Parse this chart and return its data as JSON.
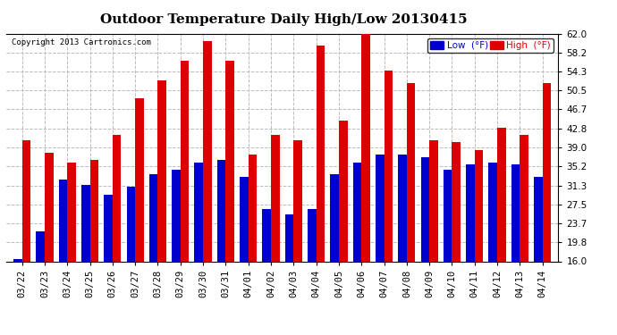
{
  "title": "Outdoor Temperature Daily High/Low 20130415",
  "copyright": "Copyright 2013 Cartronics.com",
  "dates": [
    "03/22",
    "03/23",
    "03/24",
    "03/25",
    "03/26",
    "03/27",
    "03/28",
    "03/29",
    "03/30",
    "03/31",
    "04/01",
    "04/02",
    "04/03",
    "04/04",
    "04/05",
    "04/06",
    "04/07",
    "04/08",
    "04/09",
    "04/10",
    "04/11",
    "04/12",
    "04/13",
    "04/14"
  ],
  "highs": [
    40.5,
    38.0,
    36.0,
    36.5,
    41.5,
    49.0,
    52.5,
    56.5,
    60.5,
    56.5,
    37.5,
    41.5,
    40.5,
    59.5,
    44.5,
    62.0,
    54.5,
    52.0,
    40.5,
    40.0,
    38.5,
    43.0,
    41.5,
    52.0
  ],
  "lows": [
    16.5,
    22.0,
    32.5,
    31.5,
    29.5,
    31.0,
    33.5,
    34.5,
    36.0,
    36.5,
    33.0,
    26.5,
    25.5,
    26.5,
    33.5,
    36.0,
    37.5,
    37.5,
    37.0,
    34.5,
    35.5,
    36.0,
    35.5,
    33.0
  ],
  "y_ticks": [
    16.0,
    19.8,
    23.7,
    27.5,
    31.3,
    35.2,
    39.0,
    42.8,
    46.7,
    50.5,
    54.3,
    58.2,
    62.0
  ],
  "ylim": [
    16.0,
    62.0
  ],
  "high_color": "#dd0000",
  "low_color": "#0000cc",
  "background_color": "#ffffff",
  "grid_color": "#bbbbbb",
  "legend_low_label": "Low  (°F)",
  "legend_high_label": "High  (°F)",
  "title_fontsize": 11,
  "tick_fontsize": 7.5,
  "bar_width": 0.38
}
